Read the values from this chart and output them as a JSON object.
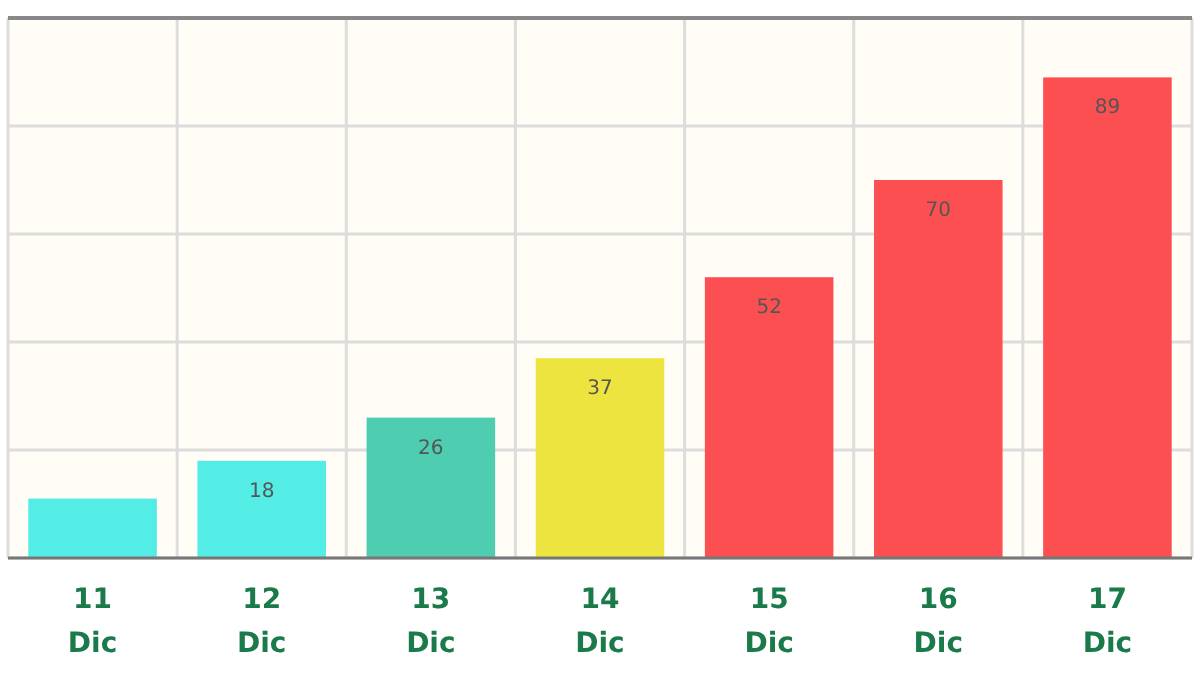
{
  "chart_data": {
    "type": "bar",
    "categories": [
      "11 Dic",
      "12 Dic",
      "13 Dic",
      "14 Dic",
      "15 Dic",
      "16 Dic",
      "17 Dic"
    ],
    "values": [
      11,
      18,
      26,
      37,
      52,
      70,
      89
    ],
    "colors": [
      "#54ede6",
      "#54ede6",
      "#4ecdb0",
      "#ede43f",
      "#fc4f51",
      "#fc4f51",
      "#fc4f51"
    ],
    "value_labels": [
      null,
      "18",
      "26",
      "37",
      "52",
      "70",
      "89"
    ],
    "ylim": [
      0,
      100
    ],
    "yticks": [
      {
        "value": 0,
        "label": null
      },
      {
        "value": 20,
        "label": null
      },
      {
        "value": 40,
        "label": null
      },
      {
        "value": 60,
        "label": null
      },
      {
        "value": 80,
        "label": null
      },
      {
        "value": 100,
        "label": null
      }
    ],
    "grid": true,
    "tick_labels": "x"
  }
}
